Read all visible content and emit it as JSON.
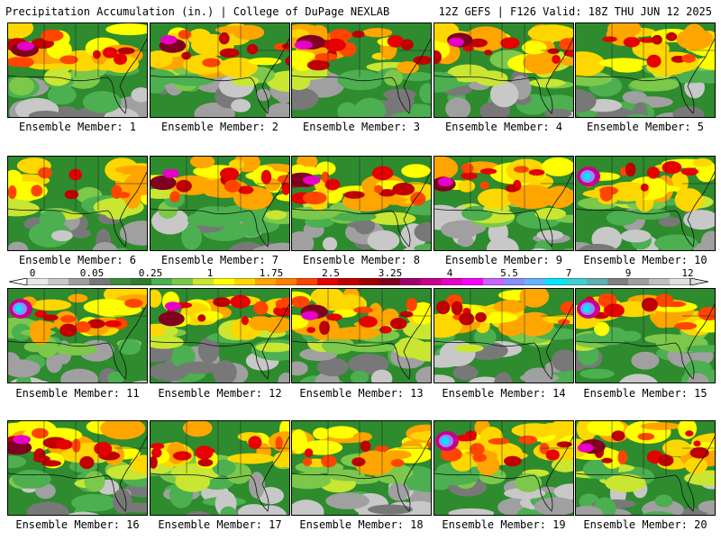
{
  "header": {
    "left": "Precipitation Accumulation (in.) | College of DuPage NEXLAB",
    "right": "12Z GEFS | F126 Valid: 18Z THU JUN 12 2025"
  },
  "colorbar": {
    "ticks": [
      "0",
      "0.05",
      "0.25",
      "1",
      "1.75",
      "2.5",
      "3.25",
      "4",
      "5.5",
      "7",
      "9",
      "12"
    ],
    "colors": [
      "#e8e8e8",
      "#c8c8c8",
      "#a0a0a0",
      "#787878",
      "#3c8c3c",
      "#2e7d2e",
      "#4caf50",
      "#7cc84a",
      "#c8e632",
      "#ffff00",
      "#ffd700",
      "#ffa500",
      "#ff7f00",
      "#ff4500",
      "#e60000",
      "#c00000",
      "#a00000",
      "#800020",
      "#a0006e",
      "#c8008c",
      "#e600c8",
      "#ff00ff",
      "#c864ff",
      "#8c8cff",
      "#64b4ff",
      "#00e6ff",
      "#40d0d0",
      "#60b0b0",
      "#808080",
      "#a0a0a0",
      "#c0c0c0",
      "#e0e0e0"
    ]
  },
  "panels": [
    {
      "label": "Ensemble Member: 1",
      "intensity": 0.9,
      "blob": "magenta"
    },
    {
      "label": "Ensemble Member: 2",
      "intensity": 0.8,
      "blob": "magenta"
    },
    {
      "label": "Ensemble Member: 3",
      "intensity": 1.0,
      "blob": "magenta"
    },
    {
      "label": "Ensemble Member: 4",
      "intensity": 0.7,
      "blob": "magenta"
    },
    {
      "label": "Ensemble Member: 5",
      "intensity": 0.6,
      "blob": "none"
    },
    {
      "label": "Ensemble Member: 6",
      "intensity": 0.4,
      "blob": "none"
    },
    {
      "label": "Ensemble Member: 7",
      "intensity": 0.8,
      "blob": "magenta"
    },
    {
      "label": "Ensemble Member: 8",
      "intensity": 0.95,
      "blob": "magenta"
    },
    {
      "label": "Ensemble Member: 9",
      "intensity": 0.6,
      "blob": "magenta"
    },
    {
      "label": "Ensemble Member: 10",
      "intensity": 0.7,
      "blob": "cyan"
    },
    {
      "label": "Ensemble Member: 11",
      "intensity": 0.8,
      "blob": "cyan"
    },
    {
      "label": "Ensemble Member: 12",
      "intensity": 0.75,
      "blob": "magenta"
    },
    {
      "label": "Ensemble Member: 13",
      "intensity": 0.85,
      "blob": "magenta"
    },
    {
      "label": "Ensemble Member: 14",
      "intensity": 0.7,
      "blob": "none"
    },
    {
      "label": "Ensemble Member: 15",
      "intensity": 0.9,
      "blob": "cyan"
    },
    {
      "label": "Ensemble Member: 16",
      "intensity": 1.0,
      "blob": "magenta"
    },
    {
      "label": "Ensemble Member: 17",
      "intensity": 0.65,
      "blob": "none"
    },
    {
      "label": "Ensemble Member: 18",
      "intensity": 0.55,
      "blob": "none"
    },
    {
      "label": "Ensemble Member: 19",
      "intensity": 0.9,
      "blob": "cyan"
    },
    {
      "label": "Ensemble Member: 20",
      "intensity": 0.75,
      "blob": "magenta"
    }
  ]
}
